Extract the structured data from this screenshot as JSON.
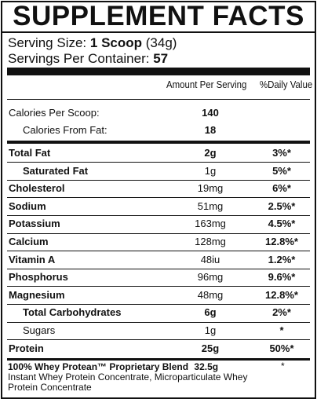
{
  "title": "SUPPLEMENT FACTS",
  "serving_size_label": "Serving Size:",
  "serving_size_value": "1 Scoop",
  "serving_size_weight": "(34g)",
  "servings_label": "Servings Per Container:",
  "servings_value": "57",
  "header_amount": "Amount Per Serving",
  "header_dv": "%Daily Value",
  "calories": {
    "name": "Calories Per Scoop:",
    "amount": "140"
  },
  "calories_fat": {
    "name": "Calories From Fat:",
    "amount": "18"
  },
  "nutrients": [
    {
      "name": "Total Fat",
      "amount": "2g",
      "dv": "3%*",
      "bold": true,
      "indent": false
    },
    {
      "name": "Saturated Fat",
      "amount": "1g",
      "dv": "5%*",
      "bold": true,
      "indent": true
    },
    {
      "name": "Cholesterol",
      "amount": "19mg",
      "dv": "6%*",
      "bold": true,
      "indent": false
    },
    {
      "name": "Sodium",
      "amount": "51mg",
      "dv": "2.5%*",
      "bold": true,
      "indent": false
    },
    {
      "name": "Potassium",
      "amount": "163mg",
      "dv": "4.5%*",
      "bold": true,
      "indent": false
    },
    {
      "name": "Calcium",
      "amount": "128mg",
      "dv": "12.8%*",
      "bold": true,
      "indent": false
    },
    {
      "name": "Vitamin A",
      "amount": "48iu",
      "dv": "1.2%*",
      "bold": true,
      "indent": false
    },
    {
      "name": "Phosphorus",
      "amount": "96mg",
      "dv": "9.6%*",
      "bold": true,
      "indent": false
    },
    {
      "name": "Magnesium",
      "amount": "48mg",
      "dv": "12.8%*",
      "bold": true,
      "indent": false
    },
    {
      "name": "Total Carbohydrates",
      "amount": "6g",
      "dv": "2%*",
      "bold": true,
      "indent": true
    },
    {
      "name": "Sugars",
      "amount": "1g",
      "dv": "*",
      "bold": false,
      "indent": true
    },
    {
      "name": "Protein",
      "amount": "25g",
      "dv": "50%*",
      "bold": true,
      "indent": false
    }
  ],
  "blend": {
    "name": "100% Whey Protean™ Proprietary Blend",
    "amount": "32.5g",
    "dv": "*",
    "ingredients_line1": "Instant Whey Protein Concentrate, Microparticulate Whey",
    "ingredients_line2": "Protein Concentrate"
  }
}
